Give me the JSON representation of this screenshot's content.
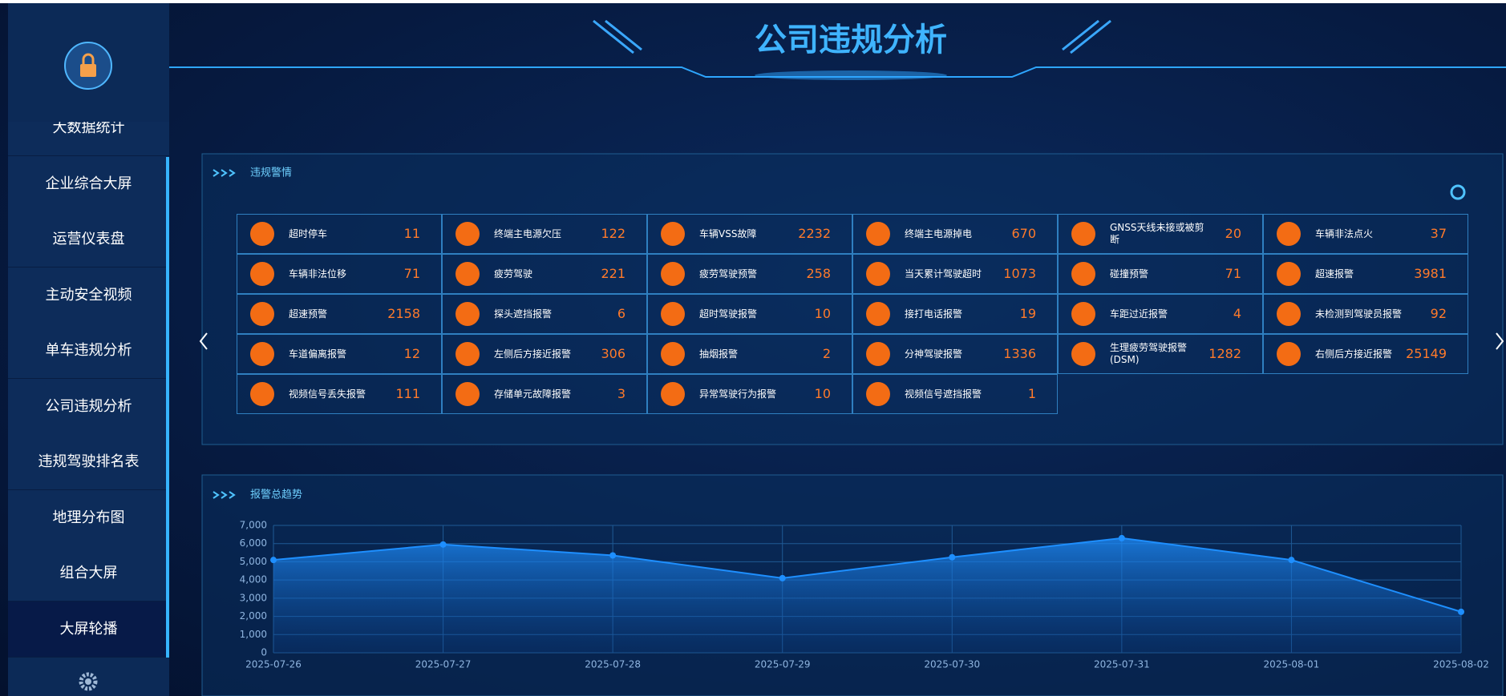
{
  "sidebar": {
    "menu": [
      "大数据统计",
      "企业综合大屏",
      "运营仪表盘",
      "主动安全视频",
      "单车违规分析",
      "公司违规分析",
      "违规驾驶排名表",
      "地理分布图",
      "组合大屏",
      "大屏轮播"
    ]
  },
  "header": {
    "title": "公司违规分析"
  },
  "alarm_panel": {
    "title": "违规警情",
    "items": [
      {
        "label": "超时停车",
        "count": 11
      },
      {
        "label": "终端主电源欠压",
        "count": 122
      },
      {
        "label": "车辆VSS故障",
        "count": 2232
      },
      {
        "label": "终端主电源掉电",
        "count": 670
      },
      {
        "label": "GNSS天线未接或被剪断",
        "count": 20
      },
      {
        "label": "车辆非法点火",
        "count": 37
      },
      {
        "label": "车辆非法位移",
        "count": 71
      },
      {
        "label": "疲劳驾驶",
        "count": 221
      },
      {
        "label": "疲劳驾驶预警",
        "count": 258
      },
      {
        "label": "当天累计驾驶超时",
        "count": 1073
      },
      {
        "label": "碰撞预警",
        "count": 71
      },
      {
        "label": "超速报警",
        "count": 3981
      },
      {
        "label": "超速预警",
        "count": 2158
      },
      {
        "label": "探头遮挡报警",
        "count": 6
      },
      {
        "label": "超时驾驶报警",
        "count": 10
      },
      {
        "label": "接打电话报警",
        "count": 19
      },
      {
        "label": "车距过近报警",
        "count": 4
      },
      {
        "label": "未检测到驾驶员报警",
        "count": 92
      },
      {
        "label": "车道偏离报警",
        "count": 12
      },
      {
        "label": "左侧后方接近报警",
        "count": 306
      },
      {
        "label": "抽烟报警",
        "count": 2
      },
      {
        "label": "分神驾驶报警",
        "count": 1336
      },
      {
        "label": "生理疲劳驾驶报警(DSM)",
        "count": 1282
      },
      {
        "label": "右侧后方接近报警",
        "count": 25149
      },
      {
        "label": "视频信号丢失报警",
        "count": 111
      },
      {
        "label": "存储单元故障报警",
        "count": 3
      },
      {
        "label": "异常驾驶行为报警",
        "count": 10
      },
      {
        "label": "视频信号遮挡报警",
        "count": 1
      }
    ]
  },
  "chart_data": {
    "type": "area",
    "title": "报警总趋势",
    "categories": [
      "2025-07-26",
      "2025-07-27",
      "2025-07-28",
      "2025-07-29",
      "2025-07-30",
      "2025-07-31",
      "2025-08-01",
      "2025-08-02"
    ],
    "values": [
      5100,
      5950,
      5350,
      4100,
      5250,
      6300,
      5100,
      2250
    ],
    "color": "#1e8fff",
    "ylim": [
      0,
      7000
    ],
    "yticks": [
      0,
      {
        "value": 1000,
        "label": "1,000"
      },
      {
        "value": 2000,
        "label": "2,000"
      },
      {
        "value": 3000,
        "label": "3,000"
      },
      {
        "value": 4000,
        "label": "4,000"
      },
      {
        "value": 5000,
        "label": "5,000"
      },
      {
        "value": 6000,
        "label": "6,000"
      },
      {
        "value": 7000,
        "label": "7,000"
      }
    ],
    "grid": true
  }
}
